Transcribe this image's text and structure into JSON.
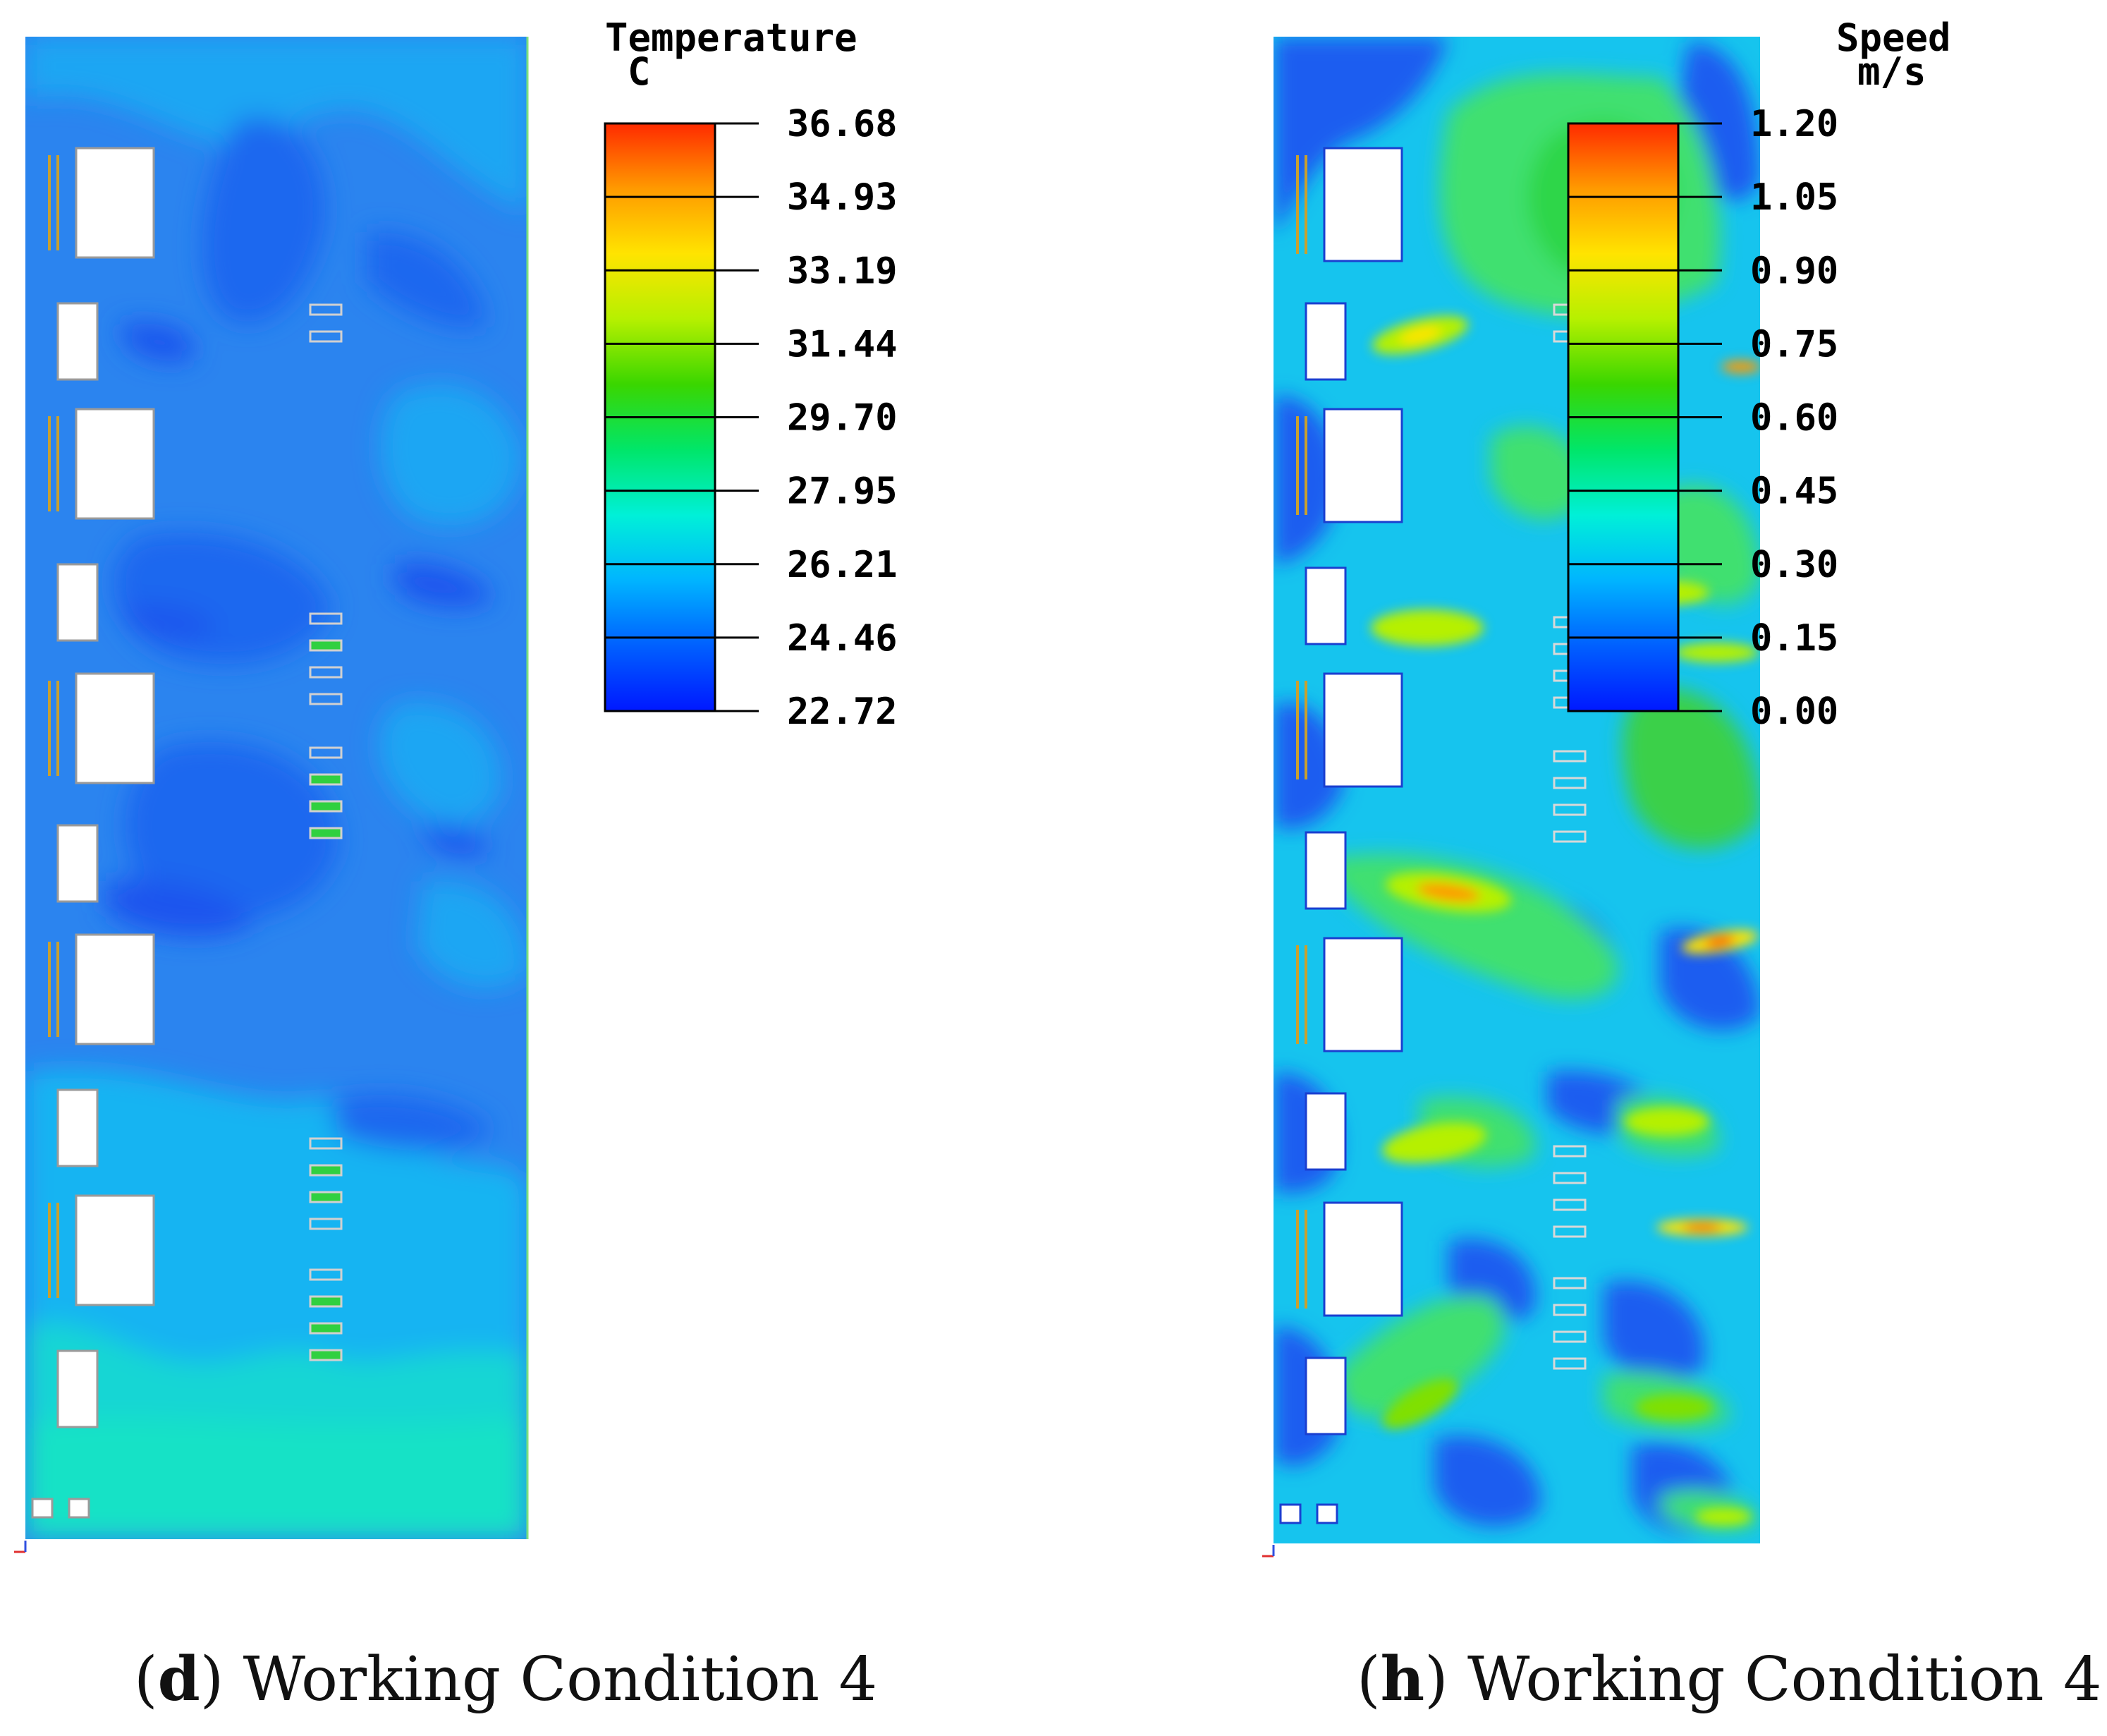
{
  "panels": [
    {
      "id": "d",
      "legend_title": "Temperature",
      "legend_unit": "C",
      "caption_letter": "d",
      "caption_text": "Working Condition 4",
      "scale_ticks": [
        "36.68",
        "34.93",
        "33.19",
        "31.44",
        "29.70",
        "27.95",
        "26.21",
        "24.46",
        "22.72"
      ],
      "colors": [
        "#ff2a00",
        "#ff9a00",
        "#ffe400",
        "#b6f000",
        "#3ad600",
        "#00e66a",
        "#00f0d8",
        "#00b4ff",
        "#0060ff",
        "#0018ff"
      ],
      "base_color": "#2c86f0"
    },
    {
      "id": "h",
      "legend_title": "Speed",
      "legend_unit": "m/s",
      "caption_letter": "h",
      "caption_text": "Working Condition 4",
      "scale_ticks": [
        "1.20",
        "1.05",
        "0.90",
        "0.75",
        "0.60",
        "0.45",
        "0.30",
        "0.15",
        "0.00"
      ],
      "colors": [
        "#ff2a00",
        "#ff9a00",
        "#ffe400",
        "#b6f000",
        "#3ad600",
        "#00e66a",
        "#00f0d8",
        "#00b4ff",
        "#0060ff",
        "#0018ff"
      ],
      "base_color": "#17c7ee"
    }
  ],
  "chart_data": [
    {
      "type": "heatmap",
      "title": "Temperature",
      "unit": "C",
      "colorbar_ticks": [
        36.68,
        34.93,
        33.19,
        31.44,
        29.7,
        27.95,
        26.21,
        24.46,
        22.72
      ],
      "range": [
        22.72,
        36.68
      ],
      "caption": "(d) Working Condition 4"
    },
    {
      "type": "heatmap",
      "title": "Speed",
      "unit": "m/s",
      "colorbar_ticks": [
        1.2,
        1.05,
        0.9,
        0.75,
        0.6,
        0.45,
        0.3,
        0.15,
        0.0
      ],
      "range": [
        0.0,
        1.2
      ],
      "caption": "(h) Working Condition 4"
    }
  ]
}
